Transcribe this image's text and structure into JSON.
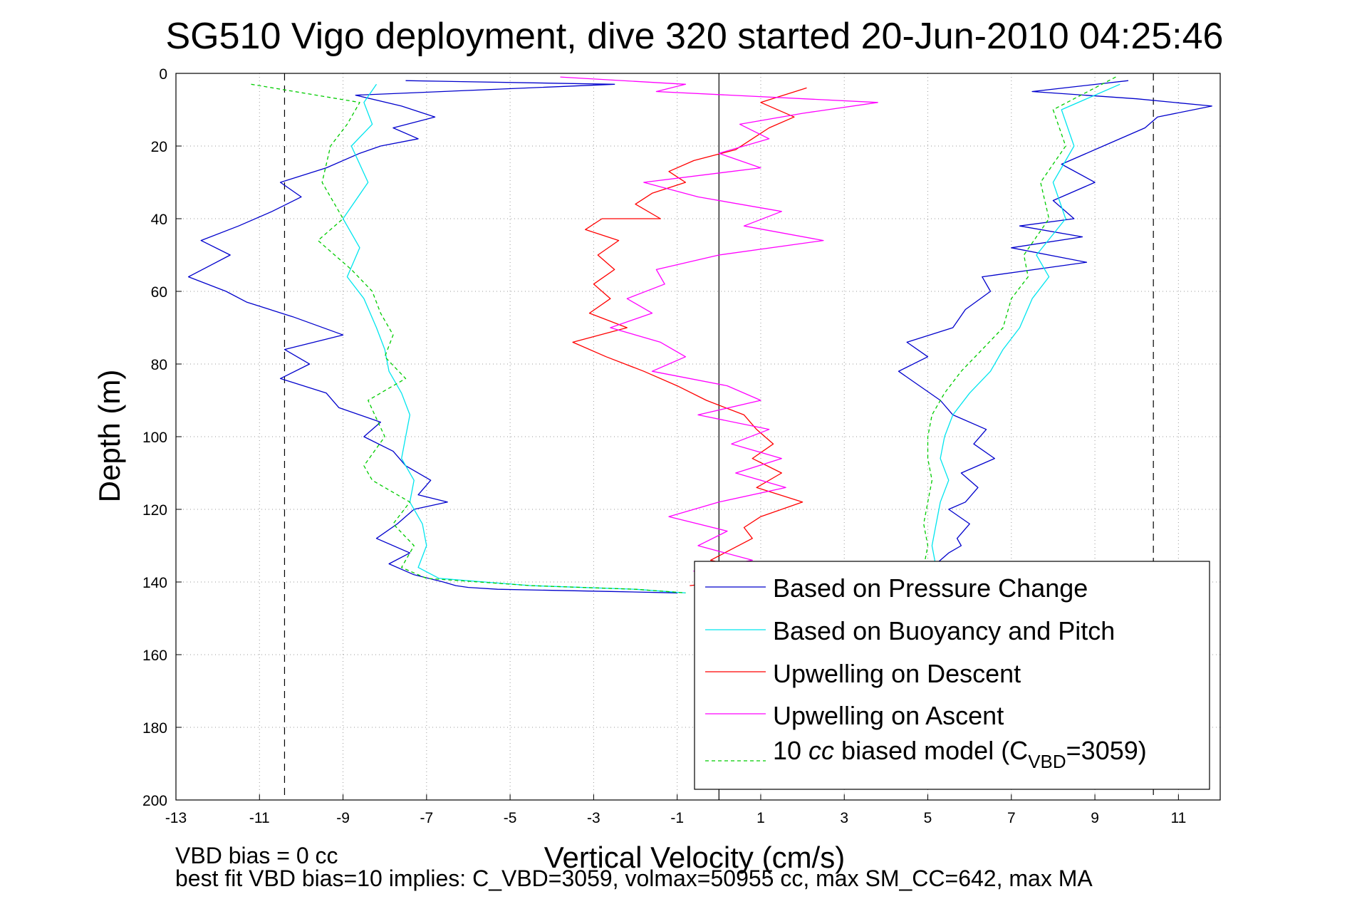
{
  "chart_data": {
    "type": "line",
    "title": "SG510 Vigo deployment, dive 320 started 20-Jun-2010 04:25:46",
    "xlabel": "Vertical Velocity (cm/s)",
    "ylabel": "Depth (m)",
    "xlim": [
      -13,
      12
    ],
    "ylim": [
      0,
      200
    ],
    "y_reversed": true,
    "grid": true,
    "legend_position": "bottom-right",
    "xticks": [
      -13,
      -11,
      -9,
      -7,
      -5,
      -3,
      -1,
      1,
      3,
      5,
      7,
      9,
      11
    ],
    "yticks": [
      0,
      20,
      40,
      60,
      80,
      100,
      120,
      140,
      160,
      180,
      200
    ],
    "reference_lines": [
      {
        "x": -10.4,
        "style": "dashed"
      },
      {
        "x": 10.4,
        "style": "dashed"
      },
      {
        "x": 0,
        "style": "solid"
      }
    ],
    "series": [
      {
        "name": "Based on Pressure Change",
        "color": "#0000cc",
        "dash": false,
        "x": [
          -7.5,
          -2.5,
          -8.7,
          -7.6,
          -6.8,
          -7.8,
          -7.2,
          -8.1,
          -8.6,
          -9.4,
          -10.5,
          -10.0,
          -10.7,
          -11.5,
          -12.4,
          -11.7,
          -12.2,
          -12.7,
          -11.8,
          -11.3,
          -10.2,
          -9.0,
          -10.4,
          -9.8,
          -10.5,
          -9.4,
          -9.1,
          -8.1,
          -8.5,
          -7.8,
          -7.5,
          -6.9,
          -7.2,
          -6.5,
          -7.3,
          -7.7,
          -8.2,
          -7.4,
          -7.9,
          -7.3,
          -6.6,
          -6.3,
          -6.0,
          -5.3,
          -4.0,
          -2.6,
          -1.0
        ],
        "x2": [
          9.8,
          7.5,
          10.0,
          11.8,
          10.5,
          10.2,
          9.2,
          8.2,
          9.0,
          8.0,
          8.5,
          7.2,
          8.7,
          7.0,
          8.8,
          6.3,
          6.5,
          5.9,
          5.6,
          4.5,
          5.0,
          4.3,
          4.8,
          5.3,
          5.6,
          6.4,
          6.1,
          6.6,
          5.8,
          6.2,
          5.9,
          5.5,
          6.0,
          5.7,
          5.8,
          5.5,
          5.2,
          5.3
        ],
        "y": [
          2,
          3,
          6,
          9,
          12,
          15,
          18,
          20,
          22,
          26,
          30,
          34,
          38,
          42,
          46,
          50,
          53,
          56,
          60,
          63,
          67,
          72,
          76,
          80,
          84,
          88,
          92,
          96,
          100,
          104,
          108,
          112,
          116,
          118,
          120,
          124,
          128,
          132,
          135,
          138,
          140,
          141,
          141.5,
          142,
          142.3,
          142.6,
          143
        ],
        "y2": [
          2,
          5,
          7,
          9,
          12,
          15,
          20,
          25,
          30,
          35,
          40,
          42,
          45,
          48,
          52,
          56,
          60,
          65,
          70,
          74,
          78,
          82,
          86,
          90,
          94,
          98,
          102,
          106,
          110,
          114,
          118,
          120,
          124,
          128,
          130,
          132,
          135,
          138
        ]
      },
      {
        "name": "Based on Buoyancy and Pitch",
        "color": "#00e5ee",
        "dash": false,
        "x": [
          -8.2,
          -8.5,
          -8.3,
          -8.8,
          -8.4,
          -9.0,
          -8.6,
          -8.9,
          -8.5,
          -8.2,
          -8.0,
          -7.9,
          -7.6,
          -7.4,
          -7.5,
          -7.6,
          -7.3,
          -7.4,
          -7.1,
          -7.0,
          -7.2,
          -6.7,
          -4.5,
          -2.0,
          -0.8
        ],
        "x2": [
          9.6,
          8.2,
          8.5,
          8.0,
          8.3,
          7.6,
          7.9,
          7.5,
          7.2,
          6.8,
          6.5,
          6.0,
          5.6,
          5.4,
          5.3,
          5.5,
          5.3,
          5.2,
          5.1,
          5.2,
          5.1,
          5.2
        ],
        "y": [
          3,
          8,
          14,
          20,
          30,
          40,
          48,
          56,
          62,
          70,
          76,
          82,
          88,
          94,
          100,
          106,
          112,
          118,
          124,
          130,
          136,
          139,
          141,
          142,
          143
        ],
        "y2": [
          3,
          10,
          20,
          30,
          40,
          50,
          56,
          62,
          70,
          76,
          82,
          88,
          94,
          100,
          106,
          112,
          118,
          124,
          130,
          136,
          140,
          143
        ]
      },
      {
        "name": "Upwelling on Descent",
        "color": "#ff0000",
        "dash": false,
        "x": [
          2.1,
          1.0,
          1.8,
          1.2,
          0.8,
          0.4,
          -0.6,
          -1.2,
          -0.8,
          -1.6,
          -2.0,
          -1.4,
          -2.8,
          -3.2,
          -2.4,
          -2.9,
          -2.5,
          -3.0,
          -2.6,
          -3.1,
          -2.2,
          -3.5,
          -2.7,
          -1.8,
          -1.0,
          -0.3,
          0.6,
          0.9,
          1.3,
          0.8,
          1.5,
          0.9,
          2.0,
          1.0,
          0.6,
          0.8,
          0.3,
          -0.2,
          0.5,
          -0.5,
          0.1,
          -0.7
        ],
        "y": [
          4,
          8,
          12,
          15,
          18,
          21,
          24,
          27,
          30,
          33,
          36,
          40,
          40,
          43,
          46,
          50,
          54,
          58,
          62,
          66,
          70,
          74,
          78,
          82,
          86,
          90,
          94,
          98,
          102,
          106,
          110,
          114,
          118,
          122,
          125,
          128,
          131,
          134,
          136,
          138,
          140,
          141
        ]
      },
      {
        "name": "Upwelling on Ascent",
        "color": "#ff00ff",
        "dash": false,
        "x": [
          -3.8,
          -0.8,
          -1.5,
          3.8,
          2.0,
          0.5,
          1.2,
          0.0,
          1.0,
          -1.8,
          -0.5,
          1.5,
          0.6,
          2.5,
          0.0,
          -1.5,
          -1.3,
          -2.2,
          -1.6,
          -2.6,
          -1.4,
          -0.8,
          -1.6,
          0.2,
          1.0,
          -0.5,
          1.2,
          0.3,
          1.5,
          0.4,
          1.6,
          0.0,
          -1.2,
          0.2,
          -0.5,
          0.8,
          -0.6,
          0.2
        ],
        "y": [
          1,
          3,
          5,
          8,
          11,
          14,
          18,
          22,
          26,
          30,
          34,
          38,
          42,
          46,
          50,
          54,
          58,
          62,
          66,
          70,
          74,
          78,
          82,
          86,
          90,
          94,
          98,
          102,
          106,
          110,
          114,
          118,
          122,
          126,
          130,
          134,
          137,
          140
        ]
      },
      {
        "name": "10 cc biased model (C_VBD=3059)",
        "color": "#00cc00",
        "dash": true,
        "x": [
          -11.2,
          -8.6,
          -8.9,
          -9.3,
          -9.5,
          -9.0,
          -9.6,
          -8.8,
          -8.3,
          -8.1,
          -7.8,
          -8.0,
          -7.5,
          -8.4,
          -8.0,
          -8.5,
          -8.3,
          -7.4,
          -7.8,
          -7.3,
          -7.6,
          -7.0,
          -4.5,
          -2.0,
          -0.8
        ],
        "x2": [
          9.5,
          8.0,
          8.3,
          7.7,
          7.9,
          7.3,
          7.4,
          7.0,
          6.8,
          6.3,
          5.8,
          5.4,
          5.1,
          5.0,
          5.0,
          5.1,
          5.0,
          4.9,
          5.0,
          4.9,
          5.0
        ],
        "y": [
          3,
          8,
          14,
          20,
          30,
          40,
          46,
          54,
          60,
          66,
          72,
          78,
          84,
          90,
          100,
          108,
          112,
          118,
          124,
          130,
          136,
          139,
          141,
          142,
          143
        ],
        "y2": [
          1,
          10,
          20,
          30,
          40,
          50,
          56,
          62,
          70,
          76,
          82,
          88,
          94,
          100,
          106,
          112,
          118,
          124,
          130,
          136,
          140
        ]
      }
    ],
    "legend_entries": {
      "e1": "Based on Pressure Change",
      "e2": "Based on Buoyancy and Pitch",
      "e3": "Upwelling on Descent",
      "e4": "Upwelling on Ascent",
      "e5_pre": "10 ",
      "e5_cc": "cc",
      "e5_mid": " biased model (C",
      "e5_sub": "VBD",
      "e5_post": "=3059)"
    },
    "annotations": {
      "vbd_bias": "VBD bias = 0 cc",
      "best_fit": "best fit VBD bias=10 implies: C_VBD=3059, volmax=50955 cc, max SM_CC=642, max MA"
    }
  }
}
